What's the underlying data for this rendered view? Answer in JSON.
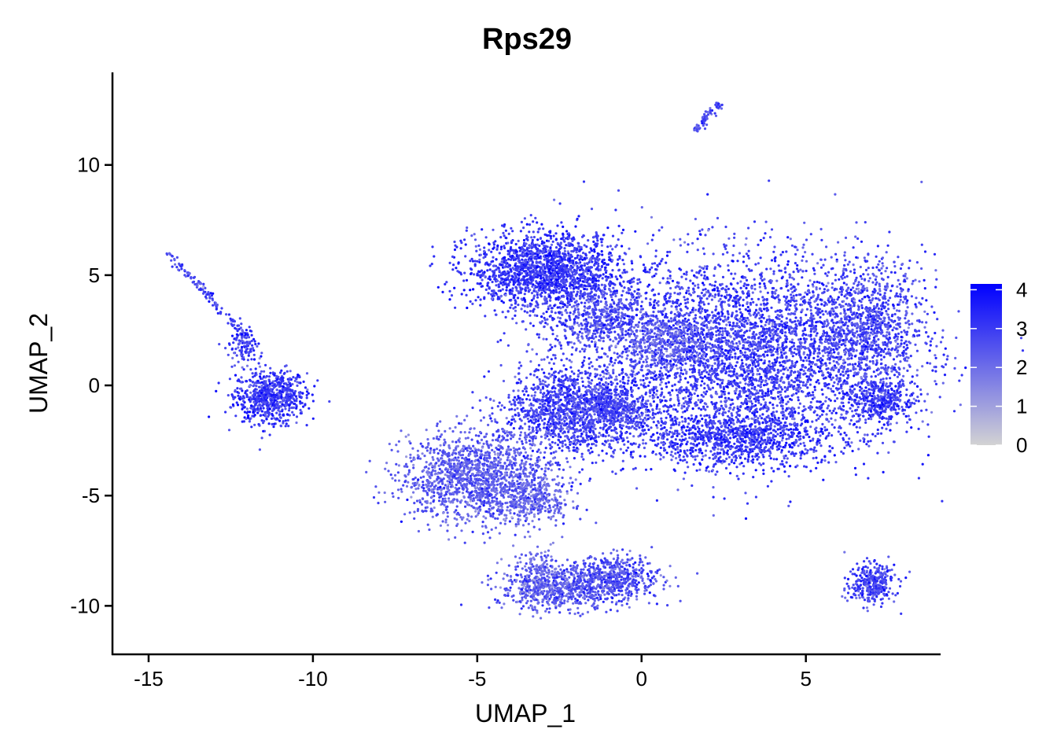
{
  "chart_data": {
    "type": "scatter",
    "title": "Rps29",
    "xlabel": "UMAP_1",
    "ylabel": "UMAP_2",
    "xlim": [
      -16.1,
      9.1
    ],
    "ylim": [
      -12.2,
      14.2
    ],
    "x_ticks": [
      -15,
      -10,
      -5,
      0,
      5
    ],
    "y_ticks": [
      -10,
      -5,
      0,
      5,
      10
    ],
    "grid": false,
    "color_scale": {
      "low_color": "#d3d3d3",
      "high_color": "#0000ff",
      "min": 0,
      "max": 4.15,
      "ticks": [
        0,
        1,
        2,
        3,
        4
      ],
      "legend_position": "right"
    },
    "clusters": [
      {
        "cx": -11.3,
        "cy": -0.5,
        "sx": 0.55,
        "sy": 0.6,
        "n": 700,
        "mean_expr": 3.0
      },
      {
        "cx": -12.1,
        "cy": 1.8,
        "sx": 0.2,
        "sy": 0.45,
        "n": 120,
        "mean_expr": 2.9
      },
      {
        "cx": -2.9,
        "cy": 5.2,
        "sx": 1.15,
        "sy": 0.85,
        "n": 1700,
        "mean_expr": 3.1
      },
      {
        "cx": -1.3,
        "cy": 3.1,
        "sx": 0.9,
        "sy": 0.7,
        "n": 500,
        "mean_expr": 2.6
      },
      {
        "cx": 3.0,
        "cy": 1.4,
        "sx": 2.4,
        "sy": 2.2,
        "n": 4200,
        "mean_expr": 2.9
      },
      {
        "cx": 6.8,
        "cy": 2.8,
        "sx": 0.9,
        "sy": 1.5,
        "n": 900,
        "mean_expr": 2.7
      },
      {
        "cx": 7.3,
        "cy": -0.7,
        "sx": 0.5,
        "sy": 0.5,
        "n": 350,
        "mean_expr": 3.0
      },
      {
        "cx": 2.8,
        "cy": -2.4,
        "sx": 1.6,
        "sy": 0.6,
        "n": 900,
        "mean_expr": 3.1
      },
      {
        "cx": -2.2,
        "cy": -1.2,
        "sx": 1.0,
        "sy": 1.0,
        "n": 1300,
        "mean_expr": 2.9
      },
      {
        "cx": -0.8,
        "cy": -1.0,
        "sx": 0.5,
        "sy": 0.6,
        "n": 300,
        "mean_expr": 2.8
      },
      {
        "cx": -5.0,
        "cy": -4.2,
        "sx": 1.1,
        "sy": 1.0,
        "n": 1500,
        "mean_expr": 2.3
      },
      {
        "cx": -3.3,
        "cy": -5.2,
        "sx": 0.6,
        "sy": 0.6,
        "n": 300,
        "mean_expr": 2.2
      },
      {
        "cx": -2.5,
        "cy": -9.2,
        "sx": 0.9,
        "sy": 0.5,
        "n": 600,
        "mean_expr": 2.4
      },
      {
        "cx": -0.8,
        "cy": -8.7,
        "sx": 0.7,
        "sy": 0.5,
        "n": 500,
        "mean_expr": 2.6
      },
      {
        "cx": -3.2,
        "cy": -8.6,
        "sx": 0.35,
        "sy": 0.6,
        "n": 180,
        "mean_expr": 2.2
      },
      {
        "cx": 7.0,
        "cy": -9.0,
        "sx": 0.35,
        "sy": 0.45,
        "n": 350,
        "mean_expr": 2.8
      },
      {
        "cx": 0.8,
        "cy": 2.0,
        "sx": 0.7,
        "sy": 0.6,
        "n": 300,
        "mean_expr": 2.2
      }
    ],
    "streaks": [
      {
        "from": [
          -14.4,
          6.0
        ],
        "to": [
          -12.3,
          2.6
        ],
        "n": 110,
        "width": 0.08,
        "mean_expr": 2.8
      },
      {
        "from": [
          1.6,
          11.5
        ],
        "to": [
          2.35,
          12.8
        ],
        "n": 70,
        "width": 0.07,
        "mean_expr": 2.7
      }
    ]
  }
}
